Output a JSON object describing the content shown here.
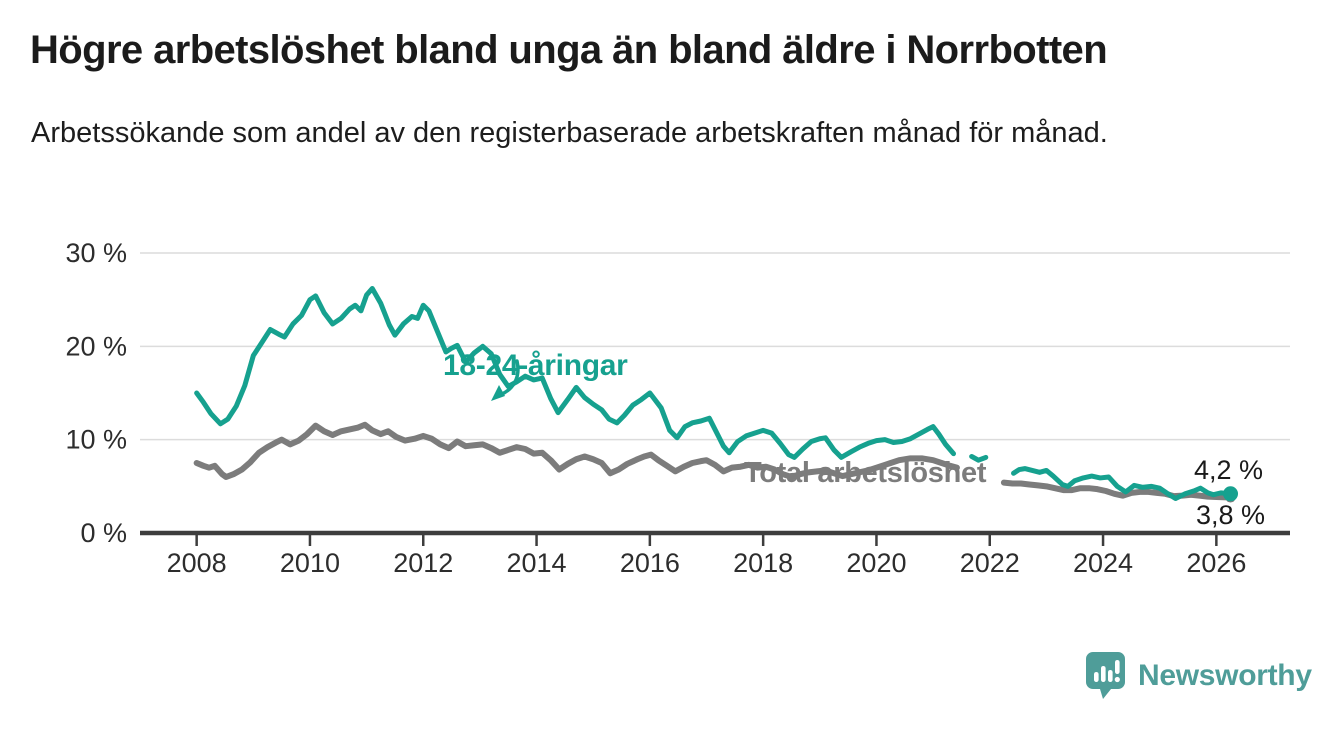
{
  "header": {
    "title": "Högre arbetslöshet bland unga än bland äldre i Norrbotten",
    "subtitle": "Arbetssökande som andel av den registerbaserade arbetskraften månad för månad."
  },
  "footer": {
    "brand": "Newsworthy",
    "logo_icon": "bar-chart-speech-bubble-icon",
    "brand_color": "#4f9d99"
  },
  "chart_data": {
    "type": "line",
    "title": "Högre arbetslöshet bland unga än bland äldre i Norrbotten",
    "xlabel": "",
    "ylabel": "",
    "y_unit": "%",
    "x_unit": "year (monthly observations)",
    "xlim": [
      2007,
      2027.3
    ],
    "ylim": [
      0,
      30
    ],
    "grid": "horizontal",
    "x_ticks": [
      2008,
      2010,
      2012,
      2014,
      2016,
      2018,
      2020,
      2022,
      2024,
      2026
    ],
    "x_tick_labels": [
      "2008",
      "2010",
      "2012",
      "2014",
      "2016",
      "2018",
      "2020",
      "2022",
      "2024",
      "2026"
    ],
    "y_ticks": [
      0,
      10,
      20,
      30
    ],
    "y_tick_labels": [
      "0 %",
      "10 %",
      "20 %",
      "30 %"
    ],
    "colors": {
      "youth": "#16a18f",
      "total": "#7c7c7c",
      "gridline": "#dcdcdc",
      "axis": "#3d3d3d",
      "tick_label": "#2d2d2d",
      "end_label": "#1a1a1a"
    },
    "series": [
      {
        "name": "18-24-åringar",
        "color": "#16a18f",
        "stroke_width": 5,
        "end_value": 4.2,
        "end_label": "4,2 %",
        "end_dot_radius": 7.5,
        "segments": [
          [
            [
              2008.0,
              15.0
            ],
            [
              2008.12,
              14.0
            ],
            [
              2008.25,
              12.8
            ],
            [
              2008.42,
              11.7
            ],
            [
              2008.55,
              12.2
            ],
            [
              2008.7,
              13.6
            ],
            [
              2008.85,
              15.8
            ],
            [
              2009.0,
              19.0
            ],
            [
              2009.15,
              20.4
            ],
            [
              2009.3,
              21.8
            ],
            [
              2009.45,
              21.3
            ],
            [
              2009.55,
              21.0
            ],
            [
              2009.7,
              22.4
            ],
            [
              2009.85,
              23.3
            ],
            [
              2010.0,
              25.0
            ],
            [
              2010.1,
              25.4
            ],
            [
              2010.25,
              23.6
            ],
            [
              2010.4,
              22.4
            ],
            [
              2010.55,
              23.0
            ],
            [
              2010.7,
              24.0
            ],
            [
              2010.8,
              24.4
            ],
            [
              2010.9,
              23.8
            ],
            [
              2011.0,
              25.5
            ],
            [
              2011.1,
              26.2
            ],
            [
              2011.25,
              24.6
            ],
            [
              2011.4,
              22.3
            ],
            [
              2011.5,
              21.2
            ],
            [
              2011.65,
              22.4
            ],
            [
              2011.8,
              23.2
            ],
            [
              2011.9,
              23.0
            ],
            [
              2012.0,
              24.4
            ],
            [
              2012.1,
              23.8
            ],
            [
              2012.25,
              21.6
            ],
            [
              2012.4,
              19.4
            ],
            [
              2012.5,
              19.8
            ],
            [
              2012.6,
              20.1
            ],
            [
              2012.75,
              18.3
            ],
            [
              2012.9,
              19.3
            ],
            [
              2013.05,
              20.0
            ],
            [
              2013.2,
              19.2
            ],
            [
              2013.35,
              17.0
            ],
            [
              2013.5,
              15.7
            ],
            [
              2013.65,
              16.2
            ],
            [
              2013.8,
              16.8
            ],
            [
              2013.95,
              16.4
            ],
            [
              2014.1,
              16.6
            ],
            [
              2014.25,
              14.4
            ],
            [
              2014.38,
              12.9
            ],
            [
              2014.55,
              14.3
            ],
            [
              2014.7,
              15.6
            ],
            [
              2014.85,
              14.5
            ],
            [
              2015.0,
              13.8
            ],
            [
              2015.15,
              13.2
            ],
            [
              2015.28,
              12.2
            ],
            [
              2015.42,
              11.8
            ],
            [
              2015.55,
              12.6
            ],
            [
              2015.7,
              13.7
            ],
            [
              2015.85,
              14.3
            ],
            [
              2016.0,
              15.0
            ],
            [
              2016.2,
              13.4
            ],
            [
              2016.35,
              11.0
            ],
            [
              2016.48,
              10.2
            ],
            [
              2016.62,
              11.4
            ],
            [
              2016.75,
              11.8
            ],
            [
              2016.9,
              12.0
            ],
            [
              2017.05,
              12.3
            ],
            [
              2017.2,
              10.5
            ],
            [
              2017.3,
              9.3
            ],
            [
              2017.4,
              8.6
            ],
            [
              2017.55,
              9.8
            ],
            [
              2017.7,
              10.4
            ],
            [
              2017.85,
              10.7
            ],
            [
              2018.0,
              11.0
            ],
            [
              2018.15,
              10.7
            ],
            [
              2018.3,
              9.6
            ],
            [
              2018.45,
              8.4
            ],
            [
              2018.55,
              8.1
            ],
            [
              2018.7,
              9.0
            ],
            [
              2018.85,
              9.8
            ],
            [
              2019.0,
              10.1
            ],
            [
              2019.1,
              10.2
            ],
            [
              2019.25,
              8.9
            ],
            [
              2019.38,
              8.1
            ],
            [
              2019.55,
              8.7
            ],
            [
              2019.7,
              9.2
            ],
            [
              2019.85,
              9.6
            ],
            [
              2020.0,
              9.9
            ],
            [
              2020.15,
              10.0
            ],
            [
              2020.3,
              9.7
            ],
            [
              2020.45,
              9.8
            ],
            [
              2020.6,
              10.1
            ],
            [
              2020.75,
              10.6
            ],
            [
              2020.9,
              11.1
            ],
            [
              2021.0,
              11.4
            ],
            [
              2021.1,
              10.6
            ],
            [
              2021.22,
              9.5
            ],
            [
              2021.36,
              8.5
            ]
          ],
          [
            [
              2021.68,
              8.2
            ],
            [
              2021.8,
              7.8
            ],
            [
              2021.93,
              8.1
            ]
          ],
          [
            [
              2022.42,
              6.4
            ],
            [
              2022.52,
              6.8
            ],
            [
              2022.62,
              6.9
            ],
            [
              2022.75,
              6.7
            ],
            [
              2022.88,
              6.5
            ],
            [
              2023.0,
              6.7
            ],
            [
              2023.12,
              6.1
            ],
            [
              2023.28,
              5.2
            ],
            [
              2023.38,
              5.0
            ],
            [
              2023.5,
              5.6
            ],
            [
              2023.65,
              5.9
            ],
            [
              2023.8,
              6.1
            ],
            [
              2023.95,
              5.9
            ],
            [
              2024.1,
              6.0
            ],
            [
              2024.25,
              5.0
            ],
            [
              2024.4,
              4.4
            ],
            [
              2024.55,
              5.1
            ],
            [
              2024.7,
              4.9
            ],
            [
              2024.85,
              5.0
            ],
            [
              2025.0,
              4.8
            ],
            [
              2025.12,
              4.3
            ],
            [
              2025.28,
              3.7
            ],
            [
              2025.45,
              4.2
            ],
            [
              2025.6,
              4.5
            ],
            [
              2025.72,
              4.8
            ],
            [
              2025.85,
              4.3
            ],
            [
              2025.95,
              4.1
            ],
            [
              2026.08,
              4.3
            ],
            [
              2026.25,
              4.2
            ]
          ]
        ]
      },
      {
        "name": "Total arbetslöshet",
        "color": "#7c7c7c",
        "stroke_width": 6,
        "end_value": 3.8,
        "end_label": "3,8 %",
        "end_dot_radius": 5,
        "segments": [
          [
            [
              2008.0,
              7.5
            ],
            [
              2008.12,
              7.2
            ],
            [
              2008.22,
              7.0
            ],
            [
              2008.32,
              7.2
            ],
            [
              2008.45,
              6.3
            ],
            [
              2008.52,
              6.0
            ],
            [
              2008.65,
              6.3
            ],
            [
              2008.8,
              6.8
            ],
            [
              2008.95,
              7.6
            ],
            [
              2009.1,
              8.6
            ],
            [
              2009.25,
              9.2
            ],
            [
              2009.4,
              9.7
            ],
            [
              2009.5,
              10.0
            ],
            [
              2009.65,
              9.5
            ],
            [
              2009.8,
              9.9
            ],
            [
              2009.95,
              10.6
            ],
            [
              2010.1,
              11.5
            ],
            [
              2010.25,
              10.9
            ],
            [
              2010.4,
              10.5
            ],
            [
              2010.55,
              10.9
            ],
            [
              2010.7,
              11.1
            ],
            [
              2010.85,
              11.3
            ],
            [
              2010.97,
              11.6
            ],
            [
              2011.1,
              11.0
            ],
            [
              2011.25,
              10.6
            ],
            [
              2011.38,
              10.9
            ],
            [
              2011.52,
              10.3
            ],
            [
              2011.68,
              9.9
            ],
            [
              2011.85,
              10.1
            ],
            [
              2012.0,
              10.4
            ],
            [
              2012.15,
              10.1
            ],
            [
              2012.3,
              9.5
            ],
            [
              2012.45,
              9.1
            ],
            [
              2012.6,
              9.8
            ],
            [
              2012.75,
              9.3
            ],
            [
              2012.9,
              9.4
            ],
            [
              2013.05,
              9.5
            ],
            [
              2013.2,
              9.1
            ],
            [
              2013.35,
              8.6
            ],
            [
              2013.5,
              8.9
            ],
            [
              2013.65,
              9.2
            ],
            [
              2013.8,
              9.0
            ],
            [
              2013.95,
              8.5
            ],
            [
              2014.1,
              8.6
            ],
            [
              2014.25,
              7.8
            ],
            [
              2014.4,
              6.8
            ],
            [
              2014.55,
              7.4
            ],
            [
              2014.7,
              7.9
            ],
            [
              2014.85,
              8.2
            ],
            [
              2015.0,
              7.9
            ],
            [
              2015.15,
              7.5
            ],
            [
              2015.3,
              6.4
            ],
            [
              2015.45,
              6.8
            ],
            [
              2015.6,
              7.4
            ],
            [
              2015.78,
              7.9
            ],
            [
              2015.9,
              8.2
            ],
            [
              2016.02,
              8.4
            ],
            [
              2016.15,
              7.8
            ],
            [
              2016.3,
              7.2
            ],
            [
              2016.45,
              6.6
            ],
            [
              2016.6,
              7.1
            ],
            [
              2016.75,
              7.5
            ],
            [
              2016.9,
              7.7
            ],
            [
              2017.0,
              7.8
            ],
            [
              2017.15,
              7.3
            ],
            [
              2017.3,
              6.6
            ],
            [
              2017.45,
              7.0
            ],
            [
              2017.6,
              7.1
            ],
            [
              2017.75,
              7.3
            ],
            [
              2017.9,
              7.0
            ],
            [
              2018.05,
              7.1
            ],
            [
              2018.2,
              6.8
            ],
            [
              2018.35,
              6.3
            ],
            [
              2018.5,
              6.0
            ],
            [
              2018.65,
              6.3
            ],
            [
              2018.8,
              6.5
            ],
            [
              2018.95,
              6.6
            ],
            [
              2019.1,
              6.7
            ],
            [
              2019.25,
              6.4
            ],
            [
              2019.4,
              6.1
            ],
            [
              2019.55,
              6.3
            ],
            [
              2019.7,
              6.5
            ],
            [
              2019.85,
              6.7
            ],
            [
              2020.0,
              7.0
            ],
            [
              2020.2,
              7.4
            ],
            [
              2020.4,
              7.8
            ],
            [
              2020.6,
              8.0
            ],
            [
              2020.8,
              8.0
            ],
            [
              2021.0,
              7.8
            ],
            [
              2021.15,
              7.5
            ],
            [
              2021.3,
              7.2
            ],
            [
              2021.42,
              7.0
            ]
          ],
          [
            [
              2022.25,
              5.4
            ],
            [
              2022.4,
              5.3
            ],
            [
              2022.55,
              5.3
            ],
            [
              2022.7,
              5.2
            ],
            [
              2022.85,
              5.1
            ],
            [
              2023.0,
              5.0
            ],
            [
              2023.15,
              4.8
            ],
            [
              2023.3,
              4.6
            ],
            [
              2023.45,
              4.6
            ],
            [
              2023.6,
              4.8
            ],
            [
              2023.75,
              4.8
            ],
            [
              2023.9,
              4.7
            ],
            [
              2024.05,
              4.5
            ],
            [
              2024.2,
              4.2
            ],
            [
              2024.35,
              4.0
            ],
            [
              2024.5,
              4.3
            ],
            [
              2024.65,
              4.4
            ],
            [
              2024.8,
              4.4
            ],
            [
              2024.95,
              4.3
            ],
            [
              2025.1,
              4.2
            ],
            [
              2025.25,
              3.95
            ],
            [
              2025.4,
              4.0
            ],
            [
              2025.55,
              4.1
            ],
            [
              2025.7,
              4.0
            ],
            [
              2025.85,
              3.9
            ],
            [
              2026.0,
              3.85
            ],
            [
              2026.25,
              3.8
            ]
          ]
        ]
      }
    ],
    "annotations": [
      {
        "text": "18-24-åringar",
        "color": "#16a18f",
        "type": "series-label",
        "arrow": true
      },
      {
        "text": "Total arbetslöshet",
        "color": "#7c7c7c",
        "type": "series-label"
      },
      {
        "text": "4,2 %",
        "type": "end-value-label",
        "series": "18-24-åringar"
      },
      {
        "text": "3,8 %",
        "type": "end-value-label",
        "series": "Total arbetslöshet"
      }
    ]
  }
}
